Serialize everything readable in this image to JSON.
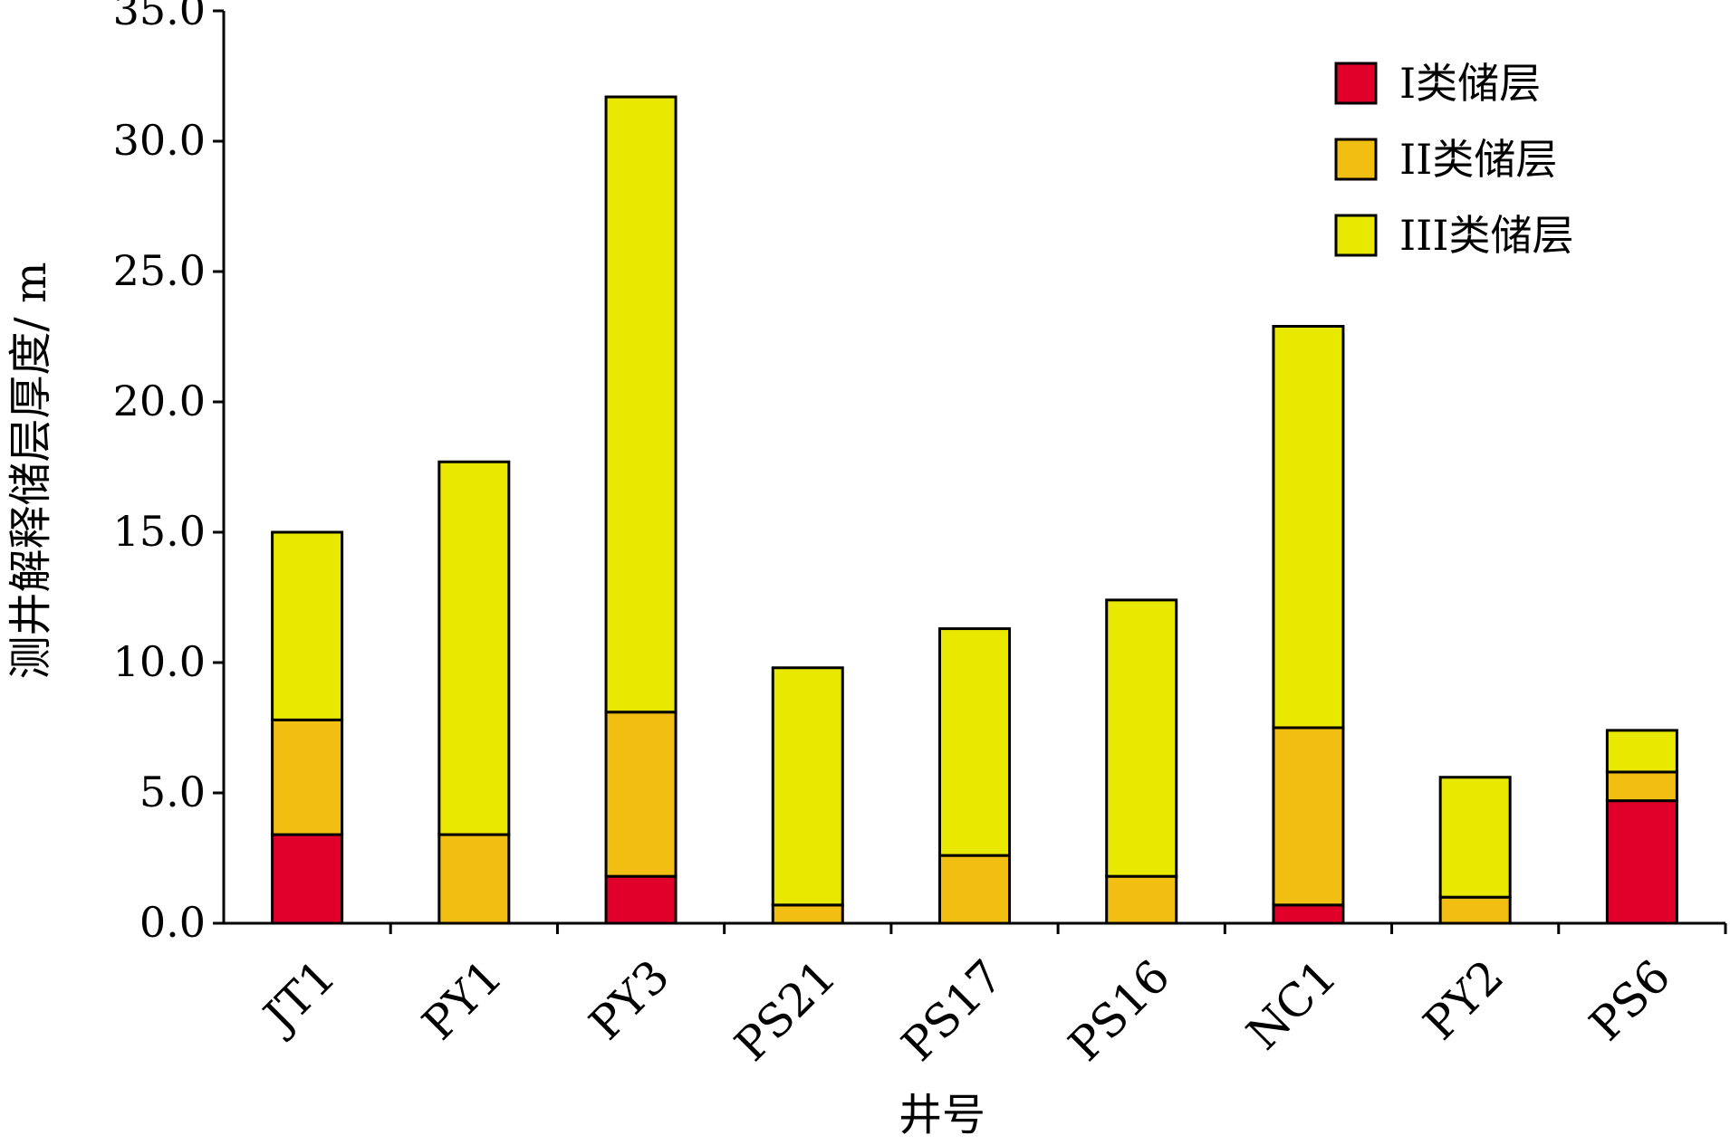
{
  "chart_data": {
    "type": "bar",
    "stacked": true,
    "title": "",
    "xlabel": "井号",
    "ylabel": "测井解释储层厚度/ m",
    "ylim": [
      0,
      35
    ],
    "yticks": [
      "0.0",
      "5.0",
      "10.0",
      "15.0",
      "20.0",
      "25.0",
      "30.0",
      "35.0"
    ],
    "grid": false,
    "legend_position": "top-right",
    "categories": [
      "JT1",
      "PY1",
      "PY3",
      "PS21",
      "PS17",
      "PS16",
      "NC1",
      "PY2",
      "PS6"
    ],
    "series": [
      {
        "name": "I类储层",
        "color": "#e0002a",
        "values": [
          3.4,
          0,
          1.8,
          0,
          0,
          0,
          0.7,
          0,
          4.7
        ]
      },
      {
        "name": "II类储层",
        "color": "#f2be12",
        "values": [
          4.4,
          3.4,
          6.3,
          0.7,
          2.6,
          1.8,
          6.8,
          1.0,
          1.1
        ]
      },
      {
        "name": "III类储层",
        "color": "#e8e800",
        "values": [
          7.2,
          14.3,
          23.6,
          9.1,
          8.7,
          10.6,
          15.4,
          4.6,
          1.6
        ]
      }
    ]
  }
}
